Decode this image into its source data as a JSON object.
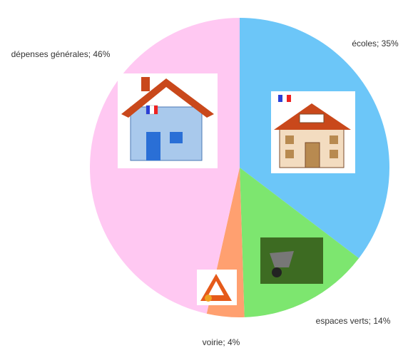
{
  "chart_data": {
    "type": "pie",
    "values": [
      35,
      14,
      4,
      46
    ],
    "value_labels": [
      "écoles; 35%",
      "espaces verts; 14%",
      "voirie; 4%",
      "dépenses générales; 46%"
    ],
    "colors": [
      "#6cc6f8",
      "#7de66f",
      "#ffa070",
      "#ffc8f2"
    ]
  }
}
